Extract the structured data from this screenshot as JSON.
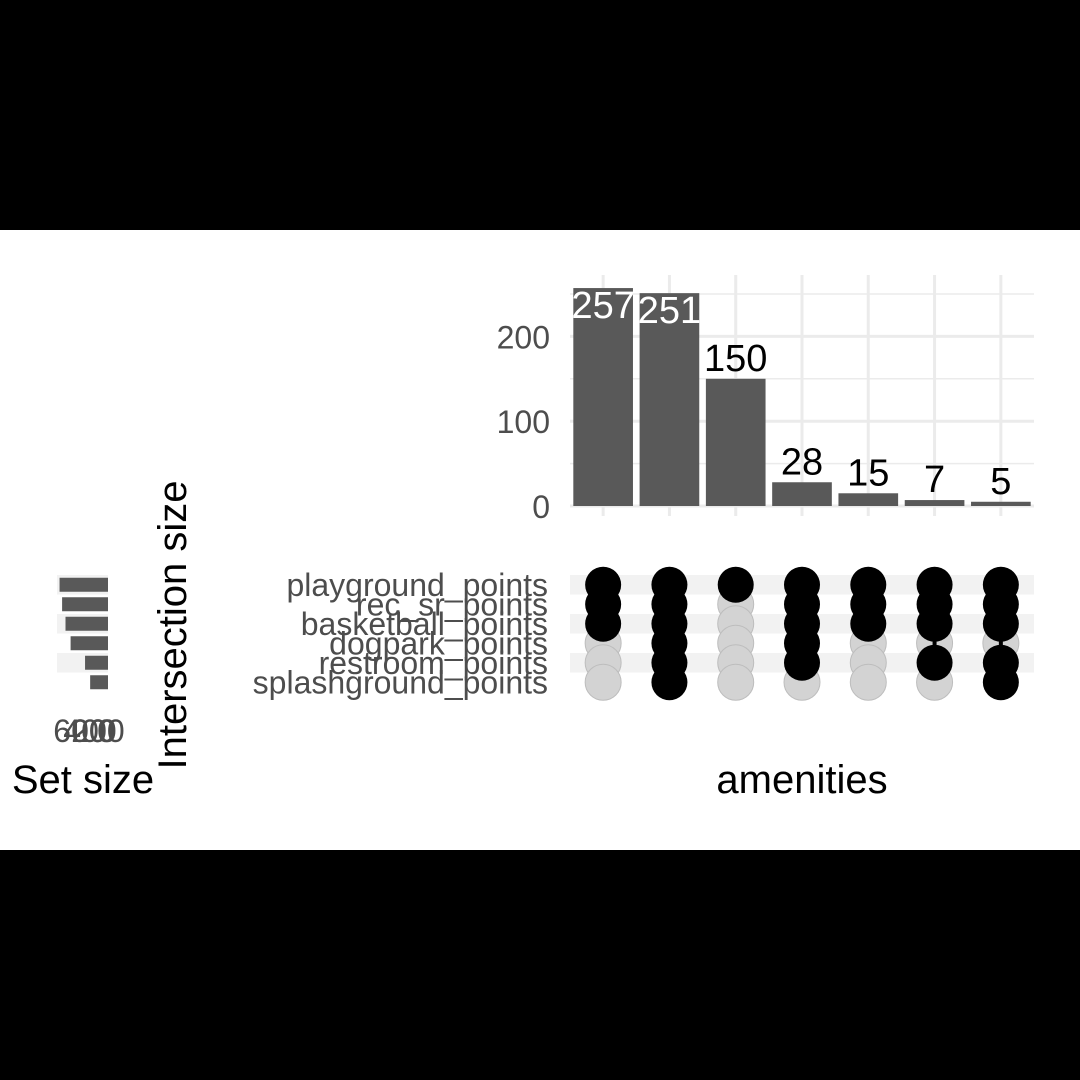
{
  "chart_data": {
    "type": "bar",
    "chart_subtype": "upset",
    "ylabel": "Intersection size",
    "xlabel": "amenities",
    "set_size_label": "Set size",
    "yticks": [
      0,
      100,
      200
    ],
    "ylim": [
      0,
      265
    ],
    "grid": true,
    "sets": [
      "playground_points",
      "rec_sr_points",
      "basketball_points",
      "dogpark_points",
      "restroom_points",
      "splashground_points"
    ],
    "set_sizes": [
      570,
      540,
      500,
      440,
      270,
      210
    ],
    "set_size_ticks": [
      "600",
      "400",
      "200",
      "0"
    ],
    "bar_labels": [
      "257",
      "251",
      "150",
      "28",
      "15",
      "7",
      "5"
    ],
    "values": [
      257,
      251,
      150,
      28,
      15,
      7,
      5
    ],
    "memberships": [
      [
        "playground_points",
        "rec_sr_points",
        "basketball_points"
      ],
      [
        "playground_points",
        "rec_sr_points",
        "basketball_points",
        "dogpark_points",
        "restroom_points",
        "splashground_points"
      ],
      [
        "playground_points"
      ],
      [
        "playground_points",
        "rec_sr_points",
        "basketball_points",
        "dogpark_points",
        "restroom_points"
      ],
      [
        "playground_points",
        "rec_sr_points",
        "basketball_points"
      ],
      [
        "playground_points",
        "rec_sr_points",
        "basketball_points",
        "restroom_points"
      ],
      [
        "playground_points",
        "rec_sr_points",
        "basketball_points",
        "restroom_points",
        "splashground_points"
      ]
    ],
    "colors": {
      "bar": "#595959",
      "dot_on": "#000000",
      "dot_off": "#d3d3d3",
      "grid": "#ebebeb",
      "stripe": "#f2f2f2"
    }
  }
}
